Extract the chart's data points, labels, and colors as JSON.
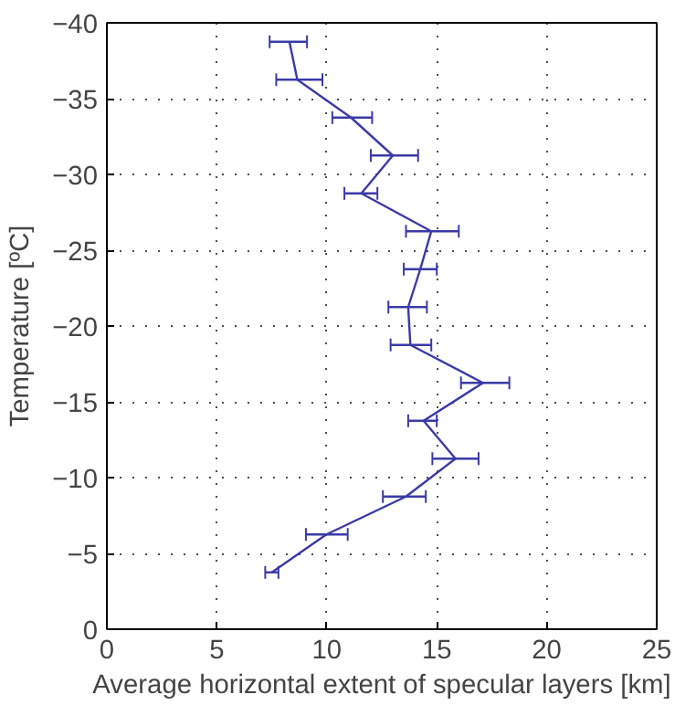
{
  "chart_data": {
    "type": "line",
    "xlabel": "Average horizontal extent of specular layers [km]",
    "ylabel": "Temperature [ºC]",
    "x": [
      8.3,
      8.66,
      11.1,
      13.0,
      11.57,
      14.75,
      14.25,
      13.7,
      13.8,
      17.1,
      14.4,
      15.85,
      13.6,
      9.98,
      7.5
    ],
    "series": [
      {
        "color": "#3a3aa8",
        "values": [
          -38.75,
          -36.25,
          -33.75,
          -31.25,
          -28.75,
          -26.25,
          -23.75,
          -21.25,
          -18.75,
          -16.25,
          -13.75,
          -11.25,
          -8.75,
          -6.25,
          -3.75
        ],
        "xerrors": [
          [
            7.4,
            9.1
          ],
          [
            7.7,
            9.8
          ],
          [
            10.25,
            12.06
          ],
          [
            12.0,
            14.15
          ],
          [
            10.8,
            12.3
          ],
          [
            13.6,
            16.0
          ],
          [
            13.5,
            15.0
          ],
          [
            12.8,
            14.55
          ],
          [
            12.9,
            14.75
          ],
          [
            16.1,
            18.3
          ],
          [
            13.7,
            15.0
          ],
          [
            14.8,
            16.9
          ],
          [
            12.55,
            14.5
          ],
          [
            9.05,
            10.95
          ],
          [
            7.2,
            7.8
          ]
        ]
      }
    ],
    "xlim": [
      0,
      25
    ],
    "xticks": [
      0,
      5,
      10,
      15,
      20,
      25
    ],
    "ylim": [
      0,
      -40
    ],
    "yticks": [
      0,
      -5,
      -10,
      -15,
      -20,
      -25,
      -30,
      -35,
      -40
    ],
    "grid": true,
    "line_style": "solid",
    "marker": "none"
  }
}
